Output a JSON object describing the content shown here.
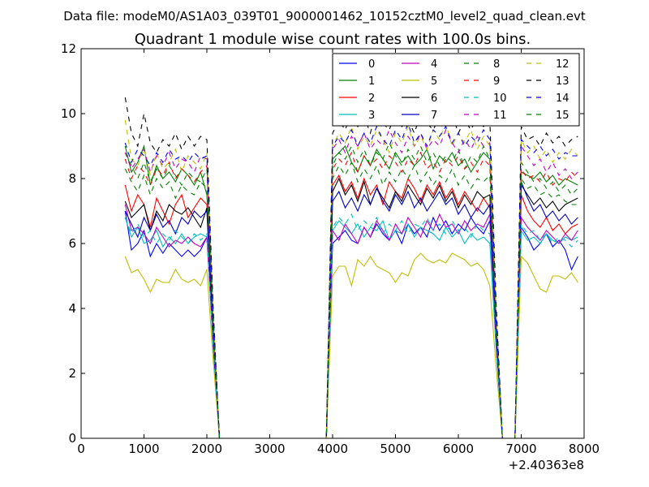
{
  "figure": {
    "suptitle": "Data file: modeM0/AS1A03_039T01_9000001462_10152cztM0_level2_quad_clean.evt"
  },
  "chart_data": {
    "type": "line",
    "title": "Quadrant 1 module wise count rates with 100.0s bins.",
    "xlabel": "",
    "ylabel": "",
    "xlim": [
      0,
      8000
    ],
    "ylim": [
      0,
      12
    ],
    "x_offset_label": "+2.40363e8",
    "xticks": [
      0,
      1000,
      2000,
      3000,
      4000,
      5000,
      6000,
      7000,
      8000
    ],
    "yticks": [
      0,
      2,
      4,
      6,
      8,
      10,
      12
    ],
    "grid": false,
    "legend_position": "top-right",
    "legend_columns": 4,
    "x": [
      700,
      800,
      900,
      1000,
      1100,
      1200,
      1300,
      1400,
      1500,
      1600,
      1700,
      1800,
      1900,
      2000,
      2100,
      2200,
      2300,
      3800,
      3900,
      4000,
      4100,
      4200,
      4300,
      4400,
      4500,
      4600,
      4700,
      4800,
      4900,
      5000,
      5100,
      5200,
      5300,
      5400,
      5500,
      5600,
      5700,
      5800,
      5900,
      6000,
      6100,
      6200,
      6300,
      6400,
      6500,
      6600,
      6700,
      6800,
      6900,
      7000,
      7100,
      7200,
      7300,
      7400,
      7500,
      7600,
      7700,
      7800,
      7900
    ],
    "series": [
      {
        "name": "0",
        "color": "#0000ff",
        "dash": "solid",
        "values": [
          7.0,
          5.8,
          6.0,
          6.4,
          5.6,
          6.0,
          5.7,
          6.0,
          5.8,
          5.6,
          5.8,
          5.6,
          5.8,
          6.2,
          3.0,
          0,
          0,
          0,
          0,
          6.0,
          6.2,
          6.4,
          6.1,
          6.0,
          6.5,
          6.2,
          6.6,
          6.3,
          6.1,
          6.4,
          6.0,
          6.6,
          6.3,
          6.5,
          6.2,
          6.8,
          6.4,
          6.7,
          6.3,
          6.6,
          6.4,
          6.8,
          6.5,
          6.3,
          6.7,
          3.0,
          0,
          0,
          0,
          6.5,
          6.2,
          5.8,
          6.0,
          6.3,
          5.9,
          6.1,
          5.8,
          5.2,
          5.6
        ]
      },
      {
        "name": "1",
        "color": "#008000",
        "dash": "solid",
        "values": [
          9.0,
          8.2,
          8.5,
          9.0,
          7.8,
          8.4,
          8.0,
          8.2,
          7.9,
          8.3,
          8.1,
          7.8,
          8.2,
          7.5,
          3.5,
          0,
          0,
          0,
          0,
          8.6,
          8.8,
          9.0,
          8.5,
          8.2,
          8.7,
          8.4,
          8.9,
          8.6,
          8.3,
          8.8,
          8.5,
          8.7,
          8.4,
          8.6,
          8.9,
          8.3,
          8.7,
          8.5,
          8.8,
          8.4,
          8.6,
          8.2,
          8.5,
          8.8,
          8.6,
          3.8,
          0,
          0,
          0,
          8.2,
          8.1,
          8.0,
          8.2,
          7.9,
          8.1,
          7.8,
          8.0,
          7.9,
          7.8
        ]
      },
      {
        "name": "2",
        "color": "#ff0000",
        "dash": "solid",
        "values": [
          7.8,
          7.0,
          7.5,
          7.2,
          6.5,
          7.4,
          7.0,
          6.6,
          7.2,
          7.5,
          6.8,
          7.1,
          7.4,
          7.2,
          3.2,
          0,
          0,
          0,
          0,
          7.8,
          8.1,
          7.6,
          7.9,
          7.4,
          8.0,
          7.5,
          7.8,
          7.2,
          7.9,
          7.6,
          7.4,
          8.0,
          7.7,
          7.3,
          7.8,
          7.5,
          7.9,
          7.4,
          7.7,
          7.2,
          7.6,
          7.3,
          7.0,
          7.4,
          7.1,
          3.2,
          0,
          0,
          0,
          7.5,
          7.0,
          6.7,
          6.5,
          6.8,
          6.4,
          6.6,
          6.3,
          6.5,
          6.6
        ]
      },
      {
        "name": "3",
        "color": "#00bfbf",
        "dash": "solid",
        "values": [
          6.8,
          6.2,
          6.5,
          6.0,
          6.1,
          6.4,
          5.9,
          6.2,
          6.0,
          6.3,
          6.0,
          6.2,
          6.3,
          6.2,
          2.8,
          0,
          0,
          0,
          0,
          6.4,
          6.7,
          6.5,
          6.3,
          6.6,
          6.2,
          6.5,
          6.4,
          6.7,
          6.1,
          6.4,
          6.3,
          6.6,
          6.2,
          6.5,
          6.4,
          6.3,
          6.1,
          6.5,
          6.2,
          6.4,
          6.0,
          6.3,
          6.1,
          6.2,
          6.0,
          2.8,
          0,
          0,
          0,
          6.4,
          6.1,
          6.2,
          6.0,
          6.3,
          6.1,
          6.0,
          6.2,
          6.1,
          6.2
        ]
      },
      {
        "name": "4",
        "color": "#bf00bf",
        "dash": "solid",
        "values": [
          7.2,
          6.4,
          6.5,
          6.3,
          6.0,
          6.5,
          6.2,
          5.9,
          6.1,
          6.0,
          6.2,
          6.0,
          5.9,
          6.2,
          2.9,
          0,
          0,
          0,
          0,
          6.4,
          6.1,
          6.6,
          6.3,
          6.0,
          6.5,
          6.2,
          6.7,
          6.4,
          6.1,
          6.6,
          6.3,
          6.8,
          6.5,
          6.2,
          6.7,
          6.4,
          6.9,
          6.5,
          6.6,
          6.3,
          6.7,
          6.4,
          6.6,
          6.5,
          6.9,
          3.0,
          0,
          0,
          0,
          6.8,
          6.5,
          6.3,
          6.1,
          6.4,
          6.2,
          6.0,
          6.3,
          6.1,
          6.4
        ]
      },
      {
        "name": "5",
        "color": "#bfbf00",
        "dash": "solid",
        "values": [
          5.6,
          5.1,
          5.2,
          4.9,
          4.5,
          4.9,
          4.8,
          4.8,
          5.2,
          4.9,
          4.8,
          4.9,
          4.7,
          5.2,
          2.4,
          0,
          0,
          0,
          0,
          5.0,
          5.3,
          5.3,
          4.7,
          5.5,
          5.3,
          5.6,
          5.3,
          5.2,
          5.1,
          4.8,
          5.1,
          5.0,
          5.5,
          5.7,
          5.5,
          5.4,
          5.5,
          5.4,
          5.7,
          5.6,
          5.5,
          5.3,
          5.4,
          5.2,
          4.7,
          2.2,
          0,
          0,
          0,
          5.6,
          5.4,
          5.0,
          4.6,
          4.5,
          5.0,
          5.0,
          4.9,
          5.1,
          4.8
        ]
      },
      {
        "name": "6",
        "color": "#000000",
        "dash": "solid",
        "values": [
          7.3,
          6.8,
          7.0,
          7.2,
          6.4,
          7.0,
          6.7,
          7.2,
          7.0,
          6.9,
          7.1,
          6.8,
          6.5,
          7.1,
          3.3,
          0,
          0,
          0,
          0,
          7.6,
          8.0,
          7.5,
          7.8,
          7.3,
          7.9,
          7.2,
          7.7,
          7.4,
          7.1,
          7.6,
          7.3,
          7.8,
          7.5,
          7.2,
          7.7,
          7.4,
          7.8,
          7.3,
          7.6,
          7.1,
          7.5,
          7.2,
          7.6,
          7.4,
          7.5,
          3.3,
          0,
          0,
          0,
          7.8,
          7.5,
          7.2,
          7.4,
          7.1,
          7.3,
          7.0,
          7.2,
          7.3,
          7.4
        ]
      },
      {
        "name": "7",
        "color": "#0000bf",
        "dash": "solid",
        "values": [
          7.0,
          6.6,
          6.2,
          6.8,
          6.4,
          6.9,
          6.5,
          6.7,
          6.3,
          6.8,
          6.6,
          7.0,
          6.8,
          7.0,
          3.1,
          0,
          0,
          0,
          0,
          7.3,
          7.6,
          7.1,
          7.4,
          7.0,
          7.5,
          7.2,
          7.7,
          7.3,
          7.0,
          7.5,
          7.2,
          7.6,
          7.1,
          7.4,
          7.0,
          7.3,
          7.6,
          7.2,
          7.4,
          6.9,
          7.2,
          6.8,
          7.1,
          6.9,
          7.2,
          3.2,
          0,
          0,
          0,
          7.9,
          7.4,
          7.0,
          7.2,
          6.8,
          7.0,
          6.7,
          6.9,
          6.6,
          6.8
        ]
      },
      {
        "name": "8",
        "color": "#008000",
        "dash": "dashed",
        "values": [
          8.8,
          8.4,
          8.0,
          8.5,
          7.9,
          8.3,
          8.0,
          8.4,
          8.1,
          7.8,
          8.2,
          8.0,
          7.9,
          8.3,
          3.7,
          0,
          0,
          0,
          0,
          8.4,
          8.8,
          8.6,
          9.0,
          8.5,
          8.9,
          8.4,
          8.8,
          8.6,
          9.1,
          8.7,
          8.4,
          8.9,
          8.6,
          9.0,
          8.5,
          8.8,
          8.4,
          8.7,
          8.5,
          8.9,
          8.3,
          8.7,
          8.5,
          9.0,
          8.6,
          3.8,
          0,
          0,
          0,
          8.5,
          8.2,
          7.9,
          8.0,
          7.7,
          7.9,
          7.6,
          7.8,
          7.5,
          7.7
        ]
      },
      {
        "name": "9",
        "color": "#ff0000",
        "dash": "dashed",
        "values": [
          8.6,
          8.0,
          8.4,
          8.2,
          7.8,
          8.3,
          8.1,
          8.5,
          8.0,
          8.3,
          8.1,
          7.9,
          8.2,
          8.4,
          3.6,
          0,
          0,
          0,
          0,
          8.3,
          8.6,
          8.4,
          8.8,
          8.2,
          8.7,
          8.4,
          8.6,
          8.3,
          8.7,
          8.5,
          8.2,
          8.6,
          8.4,
          8.8,
          8.3,
          8.5,
          8.2,
          8.6,
          8.4,
          8.7,
          8.3,
          8.5,
          8.2,
          8.6,
          8.4,
          3.7,
          0,
          0,
          0,
          8.3,
          8.0,
          8.1,
          7.9,
          8.2,
          7.8,
          8.0,
          7.9,
          8.2,
          8.0
        ]
      },
      {
        "name": "10",
        "color": "#00bfbf",
        "dash": "dashed",
        "values": [
          6.8,
          6.3,
          6.6,
          6.2,
          6.4,
          6.0,
          6.3,
          6.1,
          6.4,
          6.2,
          6.0,
          6.3,
          6.1,
          6.3,
          2.8,
          0,
          0,
          0,
          0,
          6.5,
          6.8,
          6.6,
          6.9,
          6.4,
          6.7,
          6.5,
          6.8,
          6.3,
          6.6,
          6.4,
          6.7,
          6.3,
          6.6,
          6.5,
          6.8,
          6.4,
          6.6,
          6.3,
          6.7,
          6.4,
          6.5,
          6.2,
          6.6,
          6.4,
          6.3,
          2.8,
          0,
          0,
          0,
          6.6,
          6.3,
          6.4,
          6.1,
          6.3,
          6.0,
          6.2,
          6.1,
          5.9,
          6.1
        ]
      },
      {
        "name": "11",
        "color": "#bf00bf",
        "dash": "dashed",
        "values": [
          8.8,
          8.3,
          8.6,
          8.9,
          8.2,
          8.7,
          8.4,
          8.8,
          8.3,
          8.6,
          8.5,
          8.2,
          8.7,
          8.6,
          3.7,
          0,
          0,
          0,
          0,
          8.9,
          9.2,
          8.8,
          9.3,
          9.0,
          9.4,
          8.9,
          9.2,
          9.0,
          9.5,
          9.1,
          8.8,
          9.3,
          9.0,
          9.4,
          8.9,
          9.2,
          9.0,
          9.5,
          9.1,
          8.8,
          9.2,
          8.9,
          9.3,
          9.0,
          9.1,
          3.9,
          0,
          0,
          0,
          9.0,
          8.7,
          8.4,
          8.6,
          8.2,
          8.5,
          8.1,
          8.3,
          8.0,
          8.2
        ]
      },
      {
        "name": "12",
        "color": "#bfbf00",
        "dash": "dashed",
        "values": [
          9.8,
          8.6,
          8.4,
          8.9,
          8.1,
          8.8,
          8.3,
          8.5,
          8.9,
          8.2,
          8.7,
          8.5,
          8.3,
          8.8,
          3.8,
          0,
          0,
          0,
          0,
          9.0,
          9.4,
          9.1,
          9.6,
          8.9,
          9.3,
          9.0,
          9.5,
          9.2,
          8.8,
          9.4,
          9.1,
          9.6,
          9.0,
          9.3,
          8.9,
          9.5,
          9.2,
          9.7,
          9.0,
          9.4,
          9.1,
          9.5,
          8.9,
          9.3,
          9.0,
          3.9,
          0,
          0,
          0,
          9.2,
          8.8,
          9.0,
          8.6,
          8.9,
          8.5,
          8.8,
          8.6,
          8.9,
          8.7
        ]
      },
      {
        "name": "13",
        "color": "#000000",
        "dash": "dashed",
        "values": [
          10.5,
          9.4,
          9.0,
          10.0,
          9.1,
          8.8,
          9.2,
          9.0,
          9.4,
          8.9,
          9.3,
          9.0,
          9.3,
          9.2,
          4.0,
          0,
          0,
          0,
          0,
          9.4,
          9.8,
          9.5,
          10.0,
          9.6,
          9.9,
          9.4,
          10.1,
          9.7,
          9.5,
          10.0,
          9.6,
          9.8,
          9.4,
          10.0,
          9.7,
          9.5,
          9.9,
          9.6,
          10.0,
          9.4,
          9.8,
          9.5,
          9.9,
          9.6,
          9.8,
          4.2,
          0,
          0,
          0,
          9.6,
          9.2,
          9.3,
          9.0,
          9.4,
          9.1,
          9.3,
          9.0,
          9.2,
          9.3
        ]
      },
      {
        "name": "14",
        "color": "#0000ff",
        "dash": "dashed",
        "values": [
          9.1,
          8.5,
          8.9,
          8.7,
          8.4,
          8.8,
          8.5,
          8.9,
          8.6,
          8.7,
          8.5,
          8.8,
          8.6,
          8.7,
          3.8,
          0,
          0,
          0,
          0,
          9.0,
          9.3,
          9.1,
          9.5,
          9.0,
          9.4,
          9.1,
          9.6,
          9.2,
          9.0,
          9.5,
          9.2,
          9.7,
          9.1,
          9.4,
          9.0,
          9.5,
          9.3,
          9.6,
          9.1,
          9.4,
          9.0,
          9.3,
          9.1,
          9.5,
          9.2,
          3.9,
          0,
          0,
          0,
          9.2,
          9.0,
          8.8,
          9.0,
          8.7,
          8.9,
          8.6,
          8.8,
          8.7,
          8.7
        ]
      },
      {
        "name": "15",
        "color": "#008000",
        "dash": "dashed",
        "values": [
          8.3,
          7.9,
          7.6,
          8.1,
          7.5,
          8.0,
          7.7,
          7.9,
          7.4,
          7.8,
          7.6,
          7.5,
          7.9,
          7.7,
          3.4,
          0,
          0,
          0,
          0,
          8.0,
          8.4,
          8.1,
          8.5,
          7.9,
          8.3,
          8.0,
          8.4,
          7.8,
          8.2,
          7.9,
          8.3,
          8.0,
          8.4,
          7.9,
          8.2,
          7.8,
          8.1,
          7.9,
          8.3,
          7.8,
          8.1,
          7.7,
          8.0,
          7.9,
          8.1,
          3.5,
          0,
          0,
          0,
          8.0,
          7.7,
          7.8,
          7.5,
          7.6,
          7.4,
          7.5,
          7.3,
          7.2,
          7.2
        ]
      }
    ]
  }
}
